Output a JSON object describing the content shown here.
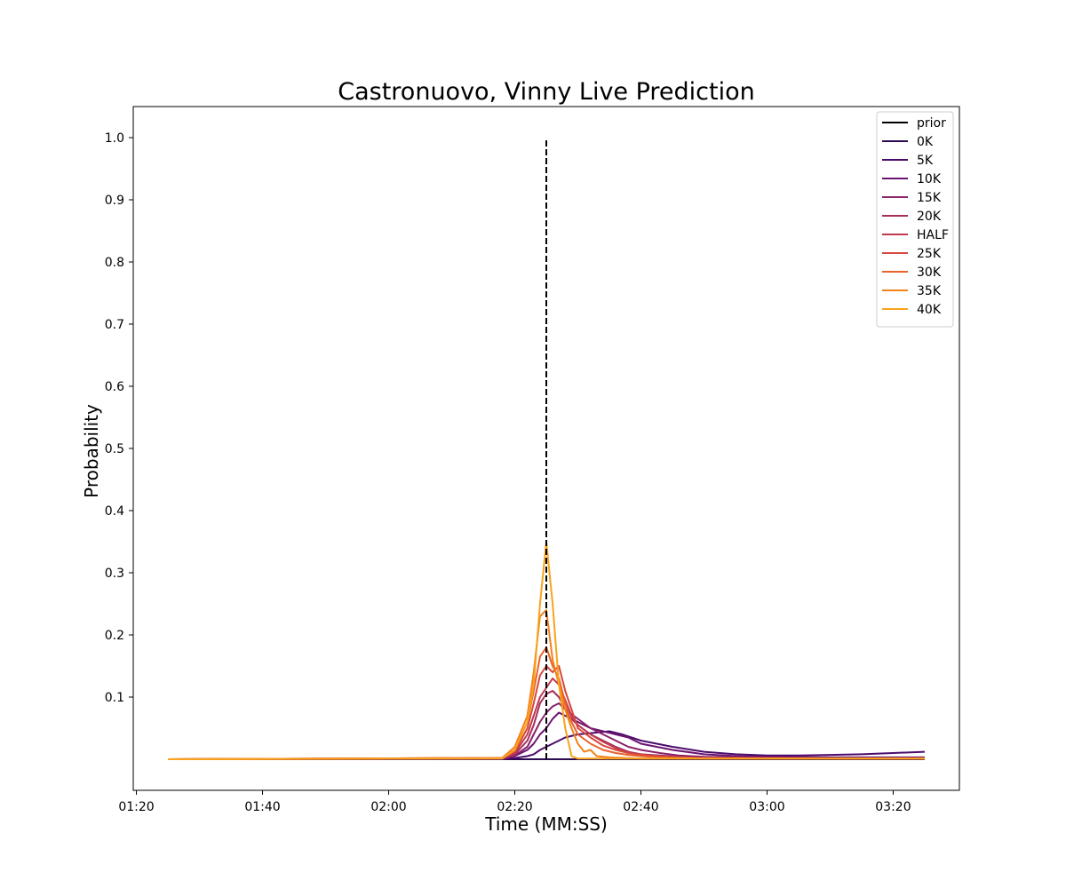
{
  "chart_data": {
    "type": "line",
    "title": "Castronuovo, Vinny Live Prediction",
    "xlabel": "Time (MM:SS)",
    "ylabel": "Probability",
    "x_unit": "seconds",
    "xlim": [
      85,
      210
    ],
    "ylim": [
      -0.05,
      1.05
    ],
    "x_ticks": [
      {
        "value": 80,
        "label": "01:20"
      },
      {
        "value": 100,
        "label": "01:40"
      },
      {
        "value": 120,
        "label": "02:00"
      },
      {
        "value": 140,
        "label": "02:20"
      },
      {
        "value": 160,
        "label": "02:40"
      },
      {
        "value": 180,
        "label": "03:00"
      },
      {
        "value": 200,
        "label": "03:20"
      }
    ],
    "y_ticks": [
      {
        "value": 0.1,
        "label": "0.1"
      },
      {
        "value": 0.2,
        "label": "0.2"
      },
      {
        "value": 0.3,
        "label": "0.3"
      },
      {
        "value": 0.4,
        "label": "0.4"
      },
      {
        "value": 0.5,
        "label": "0.5"
      },
      {
        "value": 0.6,
        "label": "0.6"
      },
      {
        "value": 0.7,
        "label": "0.7"
      },
      {
        "value": 0.8,
        "label": "0.8"
      },
      {
        "value": 0.9,
        "label": "0.9"
      },
      {
        "value": 1.0,
        "label": "1.0"
      }
    ],
    "grid": false,
    "legend_position": "top-right",
    "prior": {
      "name": "prior",
      "x": 145.0,
      "y_range": [
        0,
        1.0
      ],
      "color": "#000000",
      "style": "dashed"
    },
    "series": [
      {
        "name": "0K",
        "color": "#2a0a50",
        "x": [
          85,
          140,
          143,
          144,
          145,
          146,
          148,
          150,
          160,
          170,
          180,
          190,
          200,
          205
        ],
        "y": [
          0,
          0,
          0,
          0,
          0,
          0,
          0,
          0,
          0,
          0,
          0,
          0,
          0,
          0
        ]
      },
      {
        "name": "5K",
        "color": "#4c0b6b",
        "x": [
          85,
          138,
          140,
          142,
          143,
          144,
          145,
          146,
          147,
          148,
          150,
          152,
          155,
          157,
          160,
          165,
          170,
          175,
          180,
          185,
          190,
          195,
          200,
          205
        ],
        "y": [
          0,
          0,
          0.002,
          0.005,
          0.008,
          0.015,
          0.02,
          0.025,
          0.03,
          0.035,
          0.04,
          0.042,
          0.045,
          0.04,
          0.03,
          0.02,
          0.012,
          0.008,
          0.006,
          0.006,
          0.007,
          0.008,
          0.01,
          0.012
        ]
      },
      {
        "name": "10K",
        "color": "#6b1472",
        "x": [
          85,
          138,
          140,
          142,
          143,
          144,
          145,
          146,
          147,
          148,
          150,
          152,
          154,
          156,
          158,
          160,
          165,
          170,
          175,
          180,
          190,
          200,
          205
        ],
        "y": [
          0,
          0.001,
          0.005,
          0.015,
          0.025,
          0.04,
          0.05,
          0.065,
          0.075,
          0.07,
          0.06,
          0.05,
          0.045,
          0.04,
          0.035,
          0.025,
          0.015,
          0.008,
          0.005,
          0.004,
          0.003,
          0.003,
          0.003
        ]
      },
      {
        "name": "15K",
        "color": "#8a226a",
        "x": [
          85,
          138,
          140,
          142,
          143,
          144,
          145,
          146,
          147,
          148,
          150,
          152,
          154,
          156,
          158,
          160,
          163,
          166,
          170,
          180,
          205
        ],
        "y": [
          0,
          0.001,
          0.006,
          0.02,
          0.04,
          0.06,
          0.075,
          0.085,
          0.09,
          0.08,
          0.065,
          0.05,
          0.04,
          0.03,
          0.02,
          0.015,
          0.01,
          0.006,
          0.004,
          0.002,
          0.002
        ]
      },
      {
        "name": "20K",
        "color": "#a62f5e",
        "x": [
          85,
          138,
          140,
          142,
          143,
          144,
          145,
          146,
          147,
          148,
          149,
          150,
          152,
          154,
          156,
          158,
          160,
          163,
          166,
          170,
          205
        ],
        "y": [
          0,
          0.001,
          0.008,
          0.03,
          0.055,
          0.09,
          0.105,
          0.11,
          0.1,
          0.08,
          0.065,
          0.055,
          0.04,
          0.03,
          0.02,
          0.012,
          0.008,
          0.006,
          0.004,
          0.002,
          0.001
        ]
      },
      {
        "name": "HALF",
        "color": "#c03a50",
        "x": [
          85,
          138,
          140,
          142,
          143,
          144,
          145,
          146,
          147,
          148,
          149,
          150,
          152,
          154,
          156,
          158,
          160,
          163,
          166,
          170,
          205
        ],
        "y": [
          0,
          0.002,
          0.01,
          0.04,
          0.07,
          0.1,
          0.115,
          0.13,
          0.12,
          0.095,
          0.07,
          0.055,
          0.04,
          0.028,
          0.018,
          0.01,
          0.008,
          0.005,
          0.003,
          0.002,
          0.001
        ]
      },
      {
        "name": "25K",
        "color": "#d7483e",
        "x": [
          85,
          138,
          140,
          142,
          143,
          144,
          145,
          146,
          147,
          148,
          149,
          150,
          152,
          154,
          156,
          158,
          160,
          163,
          166,
          170,
          205
        ],
        "y": [
          0,
          0.002,
          0.012,
          0.05,
          0.09,
          0.135,
          0.15,
          0.14,
          0.15,
          0.11,
          0.08,
          0.05,
          0.035,
          0.022,
          0.015,
          0.01,
          0.007,
          0.004,
          0.003,
          0.002,
          0.001
        ]
      },
      {
        "name": "30K",
        "color": "#e8622a",
        "x": [
          85,
          138,
          140,
          142,
          143,
          144,
          145,
          146,
          147,
          148,
          149,
          150,
          152,
          154,
          156,
          158,
          160,
          163,
          166,
          170,
          205
        ],
        "y": [
          0,
          0.002,
          0.015,
          0.06,
          0.11,
          0.165,
          0.18,
          0.15,
          0.13,
          0.09,
          0.06,
          0.04,
          0.025,
          0.015,
          0.01,
          0.007,
          0.005,
          0.003,
          0.002,
          0.001,
          0.001
        ]
      },
      {
        "name": "35K",
        "color": "#f4821a",
        "x": [
          85,
          138,
          140,
          142,
          143,
          144,
          145,
          146,
          147,
          148,
          149,
          150,
          151,
          152,
          153,
          155,
          158,
          160,
          165,
          170,
          205
        ],
        "y": [
          0,
          0.002,
          0.02,
          0.07,
          0.14,
          0.23,
          0.24,
          0.16,
          0.12,
          0.08,
          0.05,
          0.025,
          0.012,
          0.015,
          0.005,
          0.003,
          0.002,
          0.001,
          0.001,
          0.001,
          0.001
        ]
      },
      {
        "name": "40K",
        "color": "#f8a31c",
        "x": [
          85,
          138,
          140,
          142,
          143,
          144,
          145,
          146,
          147,
          148,
          149,
          150,
          155,
          160,
          170,
          205
        ],
        "y": [
          0,
          0.001,
          0.015,
          0.06,
          0.12,
          0.25,
          0.35,
          0.25,
          0.12,
          0.05,
          0.005,
          0.001,
          0.001,
          0.001,
          0.001,
          0.001
        ]
      }
    ]
  }
}
